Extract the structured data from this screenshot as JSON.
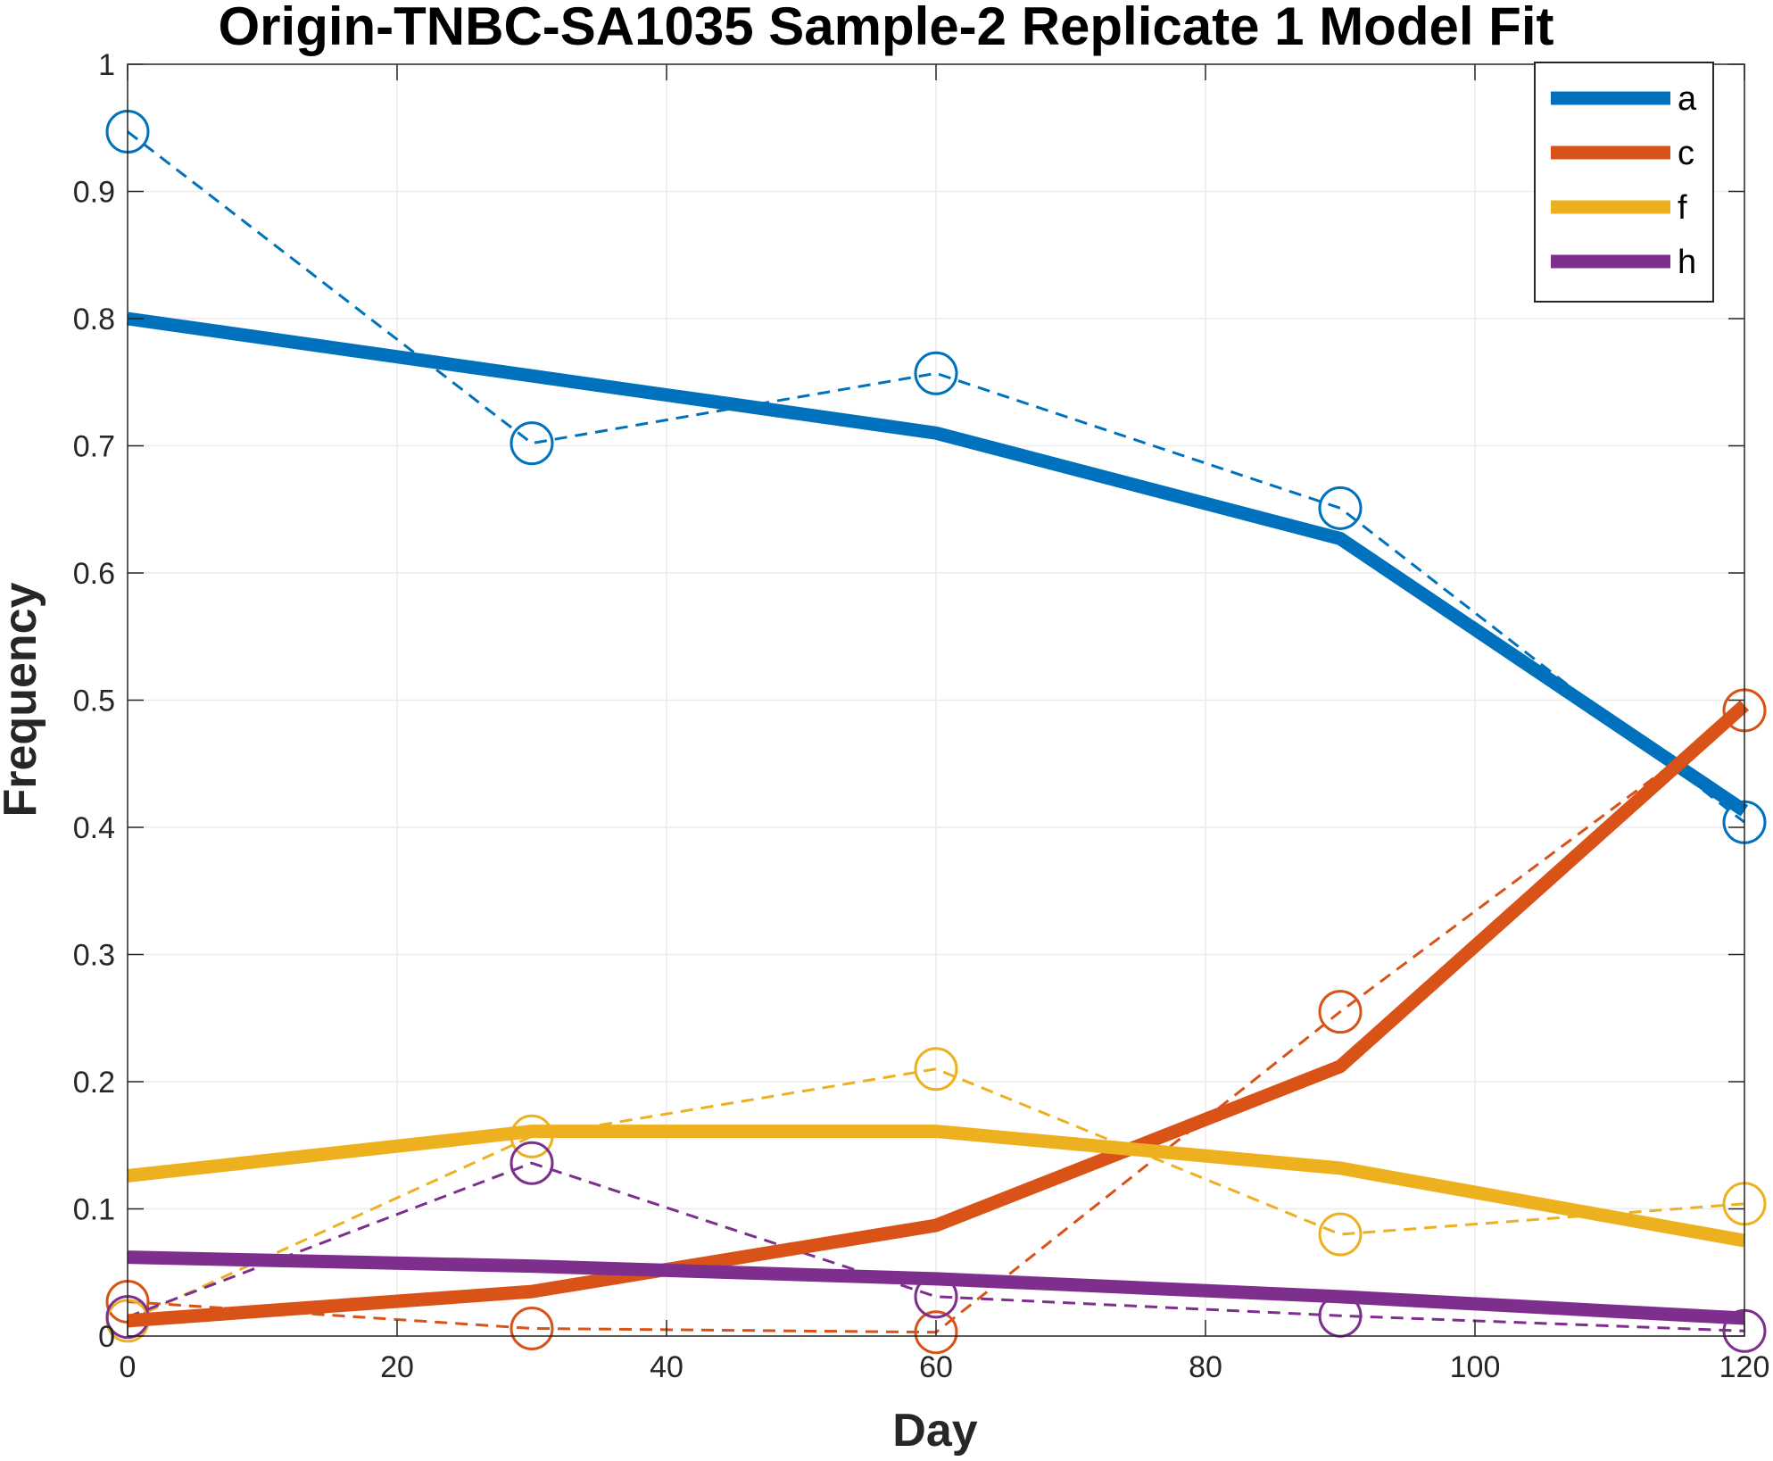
{
  "chart_data": {
    "type": "line",
    "title": "Origin-TNBC-SA1035 Sample-2 Replicate 1 Model Fit",
    "xlabel": "Day",
    "ylabel": "Frequency",
    "xlim": [
      0,
      120
    ],
    "ylim": [
      0,
      1
    ],
    "xticks": [
      0,
      20,
      40,
      60,
      80,
      100,
      120
    ],
    "yticks": [
      0,
      0.1,
      0.2,
      0.3,
      0.4,
      0.5,
      0.6,
      0.7,
      0.8,
      0.9,
      1
    ],
    "xtick_labels": [
      "0",
      "20",
      "40",
      "60",
      "80",
      "100",
      "120"
    ],
    "ytick_labels": [
      "0",
      "0.1",
      "0.2",
      "0.3",
      "0.4",
      "0.5",
      "0.6",
      "0.7",
      "0.8",
      "0.9",
      "1"
    ],
    "grid": true,
    "legend_position": "top-right",
    "x": [
      0,
      30,
      60,
      90,
      120
    ],
    "series": [
      {
        "name": "a",
        "color": "#0072BD",
        "model": [
          0.8,
          0.755,
          0.71,
          0.627,
          0.413
        ],
        "observed": [
          0.947,
          0.702,
          0.757,
          0.651,
          0.404
        ]
      },
      {
        "name": "c",
        "color": "#D95319",
        "model": [
          0.012,
          0.035,
          0.087,
          0.212,
          0.496
        ],
        "observed": [
          0.027,
          0.006,
          0.003,
          0.255,
          0.492
        ]
      },
      {
        "name": "f",
        "color": "#EDB120",
        "model": [
          0.126,
          0.161,
          0.161,
          0.132,
          0.075
        ],
        "observed": [
          0.012,
          0.157,
          0.21,
          0.08,
          0.104
        ]
      },
      {
        "name": "h",
        "color": "#7E2F8E",
        "model": [
          0.062,
          0.055,
          0.045,
          0.031,
          0.014
        ],
        "observed": [
          0.015,
          0.136,
          0.031,
          0.016,
          0.004
        ]
      }
    ]
  }
}
